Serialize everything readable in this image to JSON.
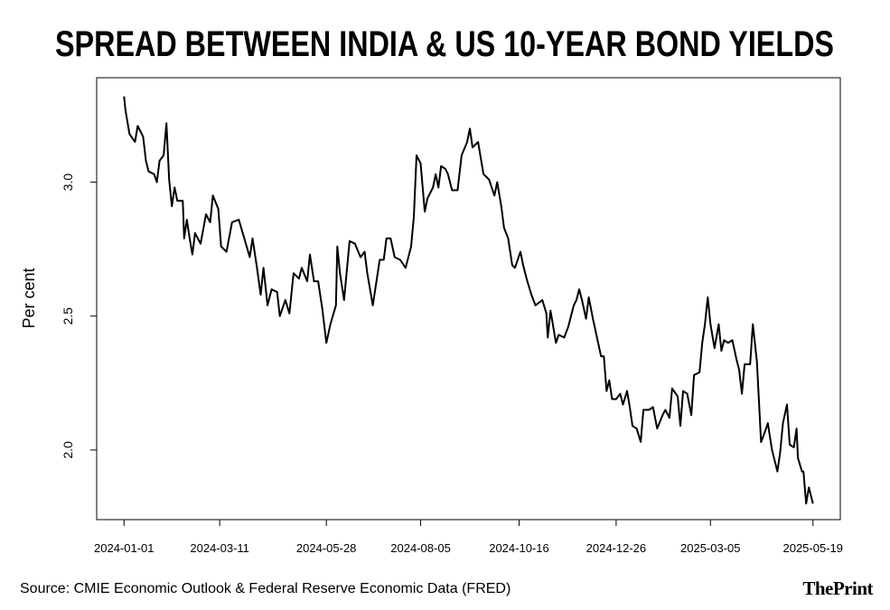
{
  "chart_data": {
    "type": "line",
    "title": "SPREAD BETWEEN INDIA & US 10-YEAR BOND YIELDS",
    "ylabel": "Per cent",
    "source": "Source: CMIE Economic Outlook & Federal Reserve Economic Data (FRED)",
    "brand": "ThePrint",
    "color": "#000000",
    "xlim": [
      "2023-12-12",
      "2025-06-08"
    ],
    "xticks": [
      "2024-01-01",
      "2024-03-11",
      "2024-05-28",
      "2024-08-05",
      "2024-10-16",
      "2024-12-26",
      "2025-03-05",
      "2025-05-19"
    ],
    "ylim": [
      1.74,
      3.39
    ],
    "yticks": [
      {
        "value": 2,
        "label": "2.0"
      },
      {
        "value": 2.5,
        "label": "2.5"
      },
      {
        "value": 3,
        "label": "3.0"
      }
    ],
    "x": [
      "2024-01-01",
      "2024-01-02",
      "2024-01-05",
      "2024-01-09",
      "2024-01-11",
      "2024-01-15",
      "2024-01-17",
      "2024-01-19",
      "2024-01-23",
      "2024-01-25",
      "2024-01-27",
      "2024-01-30",
      "2024-02-01",
      "2024-02-03",
      "2024-02-05",
      "2024-02-07",
      "2024-02-09",
      "2024-02-13",
      "2024-02-14",
      "2024-02-16",
      "2024-02-18",
      "2024-02-20",
      "2024-02-22",
      "2024-02-26",
      "2024-03-01",
      "2024-03-04",
      "2024-03-06",
      "2024-03-10",
      "2024-03-12",
      "2024-03-16",
      "2024-03-20",
      "2024-03-25",
      "2024-03-29",
      "2024-04-02",
      "2024-04-04",
      "2024-04-07",
      "2024-04-10",
      "2024-04-12",
      "2024-04-15",
      "2024-04-18",
      "2024-04-22",
      "2024-04-24",
      "2024-04-28",
      "2024-05-01",
      "2024-05-04",
      "2024-05-08",
      "2024-05-10",
      "2024-05-14",
      "2024-05-16",
      "2024-05-19",
      "2024-05-22",
      "2024-05-25",
      "2024-05-28",
      "2024-05-31",
      "2024-06-04",
      "2024-06-05",
      "2024-06-07",
      "2024-06-10",
      "2024-06-14",
      "2024-06-18",
      "2024-06-22",
      "2024-06-25",
      "2024-06-27",
      "2024-07-01",
      "2024-07-04",
      "2024-07-06",
      "2024-07-09",
      "2024-07-11",
      "2024-07-14",
      "2024-07-17",
      "2024-07-21",
      "2024-07-25",
      "2024-07-29",
      "2024-07-31",
      "2024-08-02",
      "2024-08-05",
      "2024-08-08",
      "2024-08-10",
      "2024-08-14",
      "2024-08-16",
      "2024-08-18",
      "2024-08-20",
      "2024-08-23",
      "2024-08-25",
      "2024-08-28",
      "2024-09-01",
      "2024-09-04",
      "2024-09-08",
      "2024-09-10",
      "2024-09-12",
      "2024-09-16",
      "2024-09-20",
      "2024-09-24",
      "2024-09-28",
      "2024-09-30",
      "2024-10-03",
      "2024-10-05",
      "2024-10-08",
      "2024-10-11",
      "2024-10-13",
      "2024-10-17",
      "2024-10-19",
      "2024-10-22",
      "2024-10-25",
      "2024-10-28",
      "2024-11-02",
      "2024-11-05",
      "2024-11-06",
      "2024-11-08",
      "2024-11-12",
      "2024-11-14",
      "2024-11-18",
      "2024-11-21",
      "2024-11-25",
      "2024-11-27",
      "2024-11-29",
      "2024-12-01",
      "2024-12-04",
      "2024-12-06",
      "2024-12-09",
      "2024-12-12",
      "2024-12-15",
      "2024-12-17",
      "2024-12-19",
      "2024-12-21",
      "2024-12-23",
      "2024-12-26",
      "2024-12-29",
      "2024-12-31",
      "2025-01-03",
      "2025-01-05",
      "2025-01-07",
      "2025-01-10",
      "2025-01-13",
      "2025-01-15",
      "2025-01-19",
      "2025-01-22",
      "2025-01-25",
      "2025-01-29",
      "2025-01-31",
      "2025-02-03",
      "2025-02-05",
      "2025-02-09",
      "2025-02-11",
      "2025-02-13",
      "2025-02-16",
      "2025-02-19",
      "2025-02-21",
      "2025-02-25",
      "2025-02-27",
      "2025-03-01",
      "2025-03-03",
      "2025-03-05",
      "2025-03-08",
      "2025-03-11",
      "2025-03-13",
      "2025-03-15",
      "2025-03-18",
      "2025-03-21",
      "2025-03-24",
      "2025-03-26",
      "2025-03-28",
      "2025-03-30",
      "2025-04-03",
      "2025-04-05",
      "2025-04-08",
      "2025-04-11",
      "2025-04-14",
      "2025-04-16",
      "2025-04-19",
      "2025-04-23",
      "2025-04-25",
      "2025-04-27",
      "2025-04-30",
      "2025-05-02",
      "2025-05-05",
      "2025-05-07",
      "2025-05-08",
      "2025-05-11",
      "2025-05-12",
      "2025-05-14",
      "2025-05-16",
      "2025-05-19"
    ],
    "values": [
      3.32,
      3.27,
      3.18,
      3.15,
      3.21,
      3.17,
      3.08,
      3.04,
      3.03,
      3.0,
      3.08,
      3.1,
      3.22,
      3.01,
      2.91,
      2.98,
      2.93,
      2.93,
      2.79,
      2.86,
      2.79,
      2.73,
      2.81,
      2.77,
      2.88,
      2.85,
      2.95,
      2.9,
      2.76,
      2.74,
      2.85,
      2.86,
      2.79,
      2.72,
      2.79,
      2.69,
      2.58,
      2.68,
      2.54,
      2.6,
      2.59,
      2.5,
      2.56,
      2.51,
      2.66,
      2.64,
      2.68,
      2.63,
      2.73,
      2.63,
      2.63,
      2.53,
      2.4,
      2.47,
      2.54,
      2.76,
      2.66,
      2.56,
      2.78,
      2.77,
      2.72,
      2.74,
      2.66,
      2.54,
      2.64,
      2.71,
      2.71,
      2.79,
      2.79,
      2.72,
      2.71,
      2.68,
      2.76,
      2.87,
      3.1,
      3.07,
      2.89,
      2.94,
      2.98,
      3.03,
      2.98,
      3.06,
      3.05,
      3.03,
      2.97,
      2.97,
      3.1,
      3.15,
      3.2,
      3.13,
      3.15,
      3.03,
      3.01,
      2.95,
      3.0,
      2.91,
      2.83,
      2.79,
      2.69,
      2.68,
      2.74,
      2.69,
      2.63,
      2.58,
      2.54,
      2.56,
      2.51,
      2.42,
      2.52,
      2.4,
      2.43,
      2.42,
      2.46,
      2.54,
      2.56,
      2.6,
      2.56,
      2.49,
      2.57,
      2.49,
      2.42,
      2.35,
      2.35,
      2.22,
      2.26,
      2.19,
      2.19,
      2.21,
      2.17,
      2.22,
      2.16,
      2.09,
      2.08,
      2.03,
      2.15,
      2.15,
      2.16,
      2.08,
      2.13,
      2.15,
      2.12,
      2.23,
      2.2,
      2.09,
      2.22,
      2.21,
      2.13,
      2.28,
      2.29,
      2.4,
      2.47,
      2.57,
      2.47,
      2.38,
      2.47,
      2.37,
      2.41,
      2.4,
      2.41,
      2.34,
      2.3,
      2.21,
      2.32,
      2.32,
      2.47,
      2.33,
      2.03,
      2.07,
      2.1,
      2.0,
      1.92,
      1.99,
      2.1,
      2.17,
      2.02,
      2.01,
      2.08,
      1.97,
      1.92,
      1.92,
      1.8,
      1.86,
      1.8
    ]
  }
}
